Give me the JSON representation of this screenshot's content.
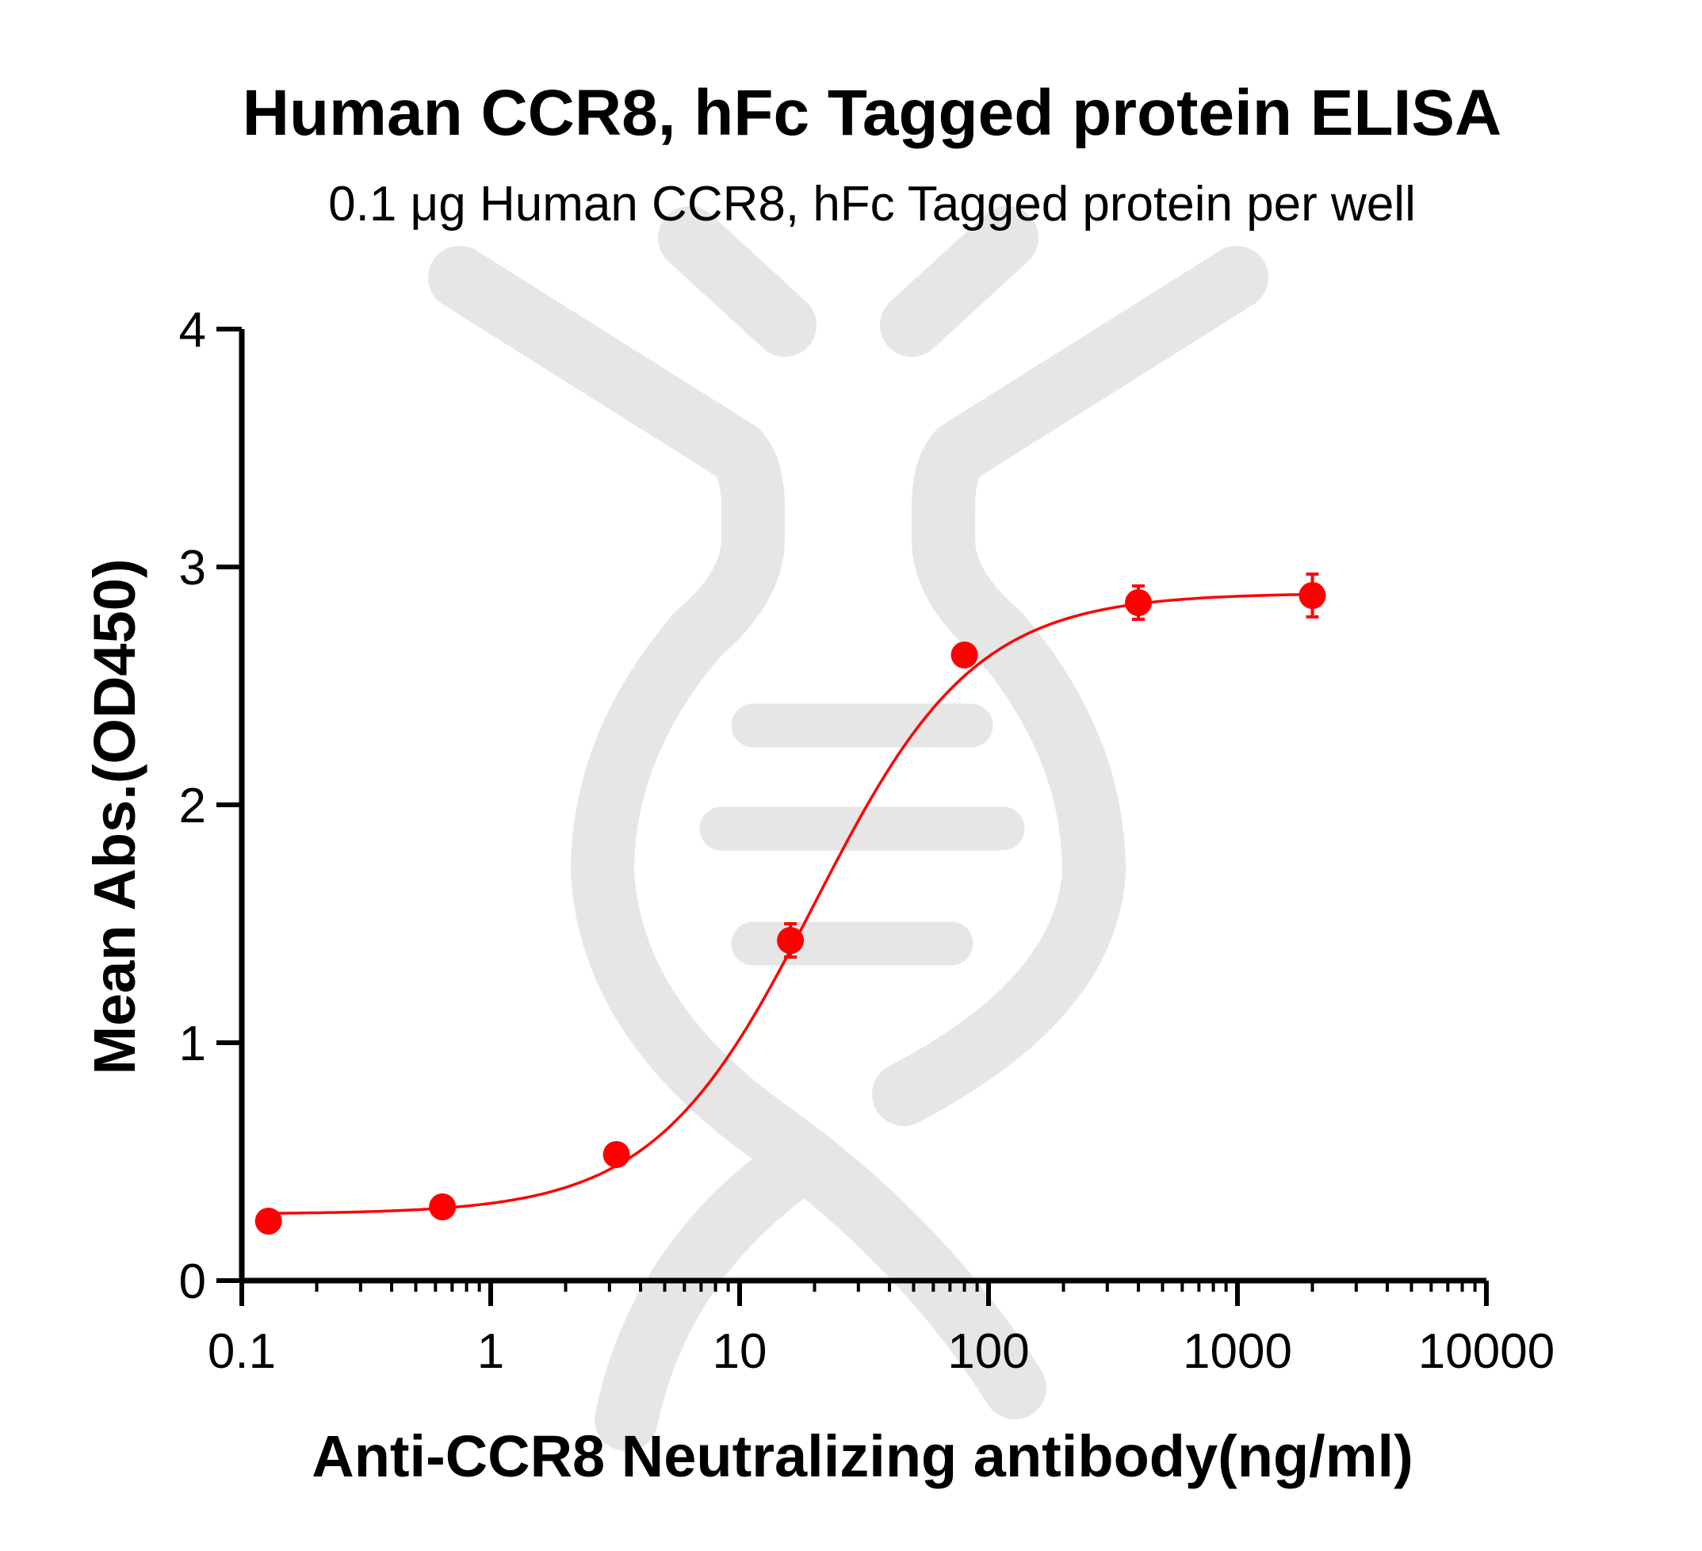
{
  "chart_data": {
    "type": "scatter",
    "title": "Human CCR8, hFc Tagged protein ELISA",
    "subtitle": "0.1 μg Human CCR8, hFc Tagged protein per well",
    "xlabel": "Anti-CCR8 Neutralizing antibody(ng/ml)",
    "ylabel": "Mean Abs.(OD450)",
    "x_scale": "log",
    "xlim": [
      0.1,
      10000
    ],
    "ylim": [
      0,
      4
    ],
    "x_ticks": [
      "0.1",
      "1",
      "10",
      "100",
      "1000",
      "10000"
    ],
    "y_ticks": [
      "0",
      "1",
      "2",
      "3",
      "4"
    ],
    "grid": false,
    "series": [
      {
        "color": "#ff0000",
        "x": [
          0.128,
          0.64,
          3.2,
          16,
          80,
          400,
          2000
        ],
        "y": [
          0.25,
          0.31,
          0.53,
          1.43,
          2.63,
          2.85,
          2.88
        ],
        "error": [
          0.02,
          0.02,
          0.03,
          0.07,
          0.04,
          0.07,
          0.09
        ],
        "fit": "4PL sigmoidal curve"
      }
    ]
  }
}
